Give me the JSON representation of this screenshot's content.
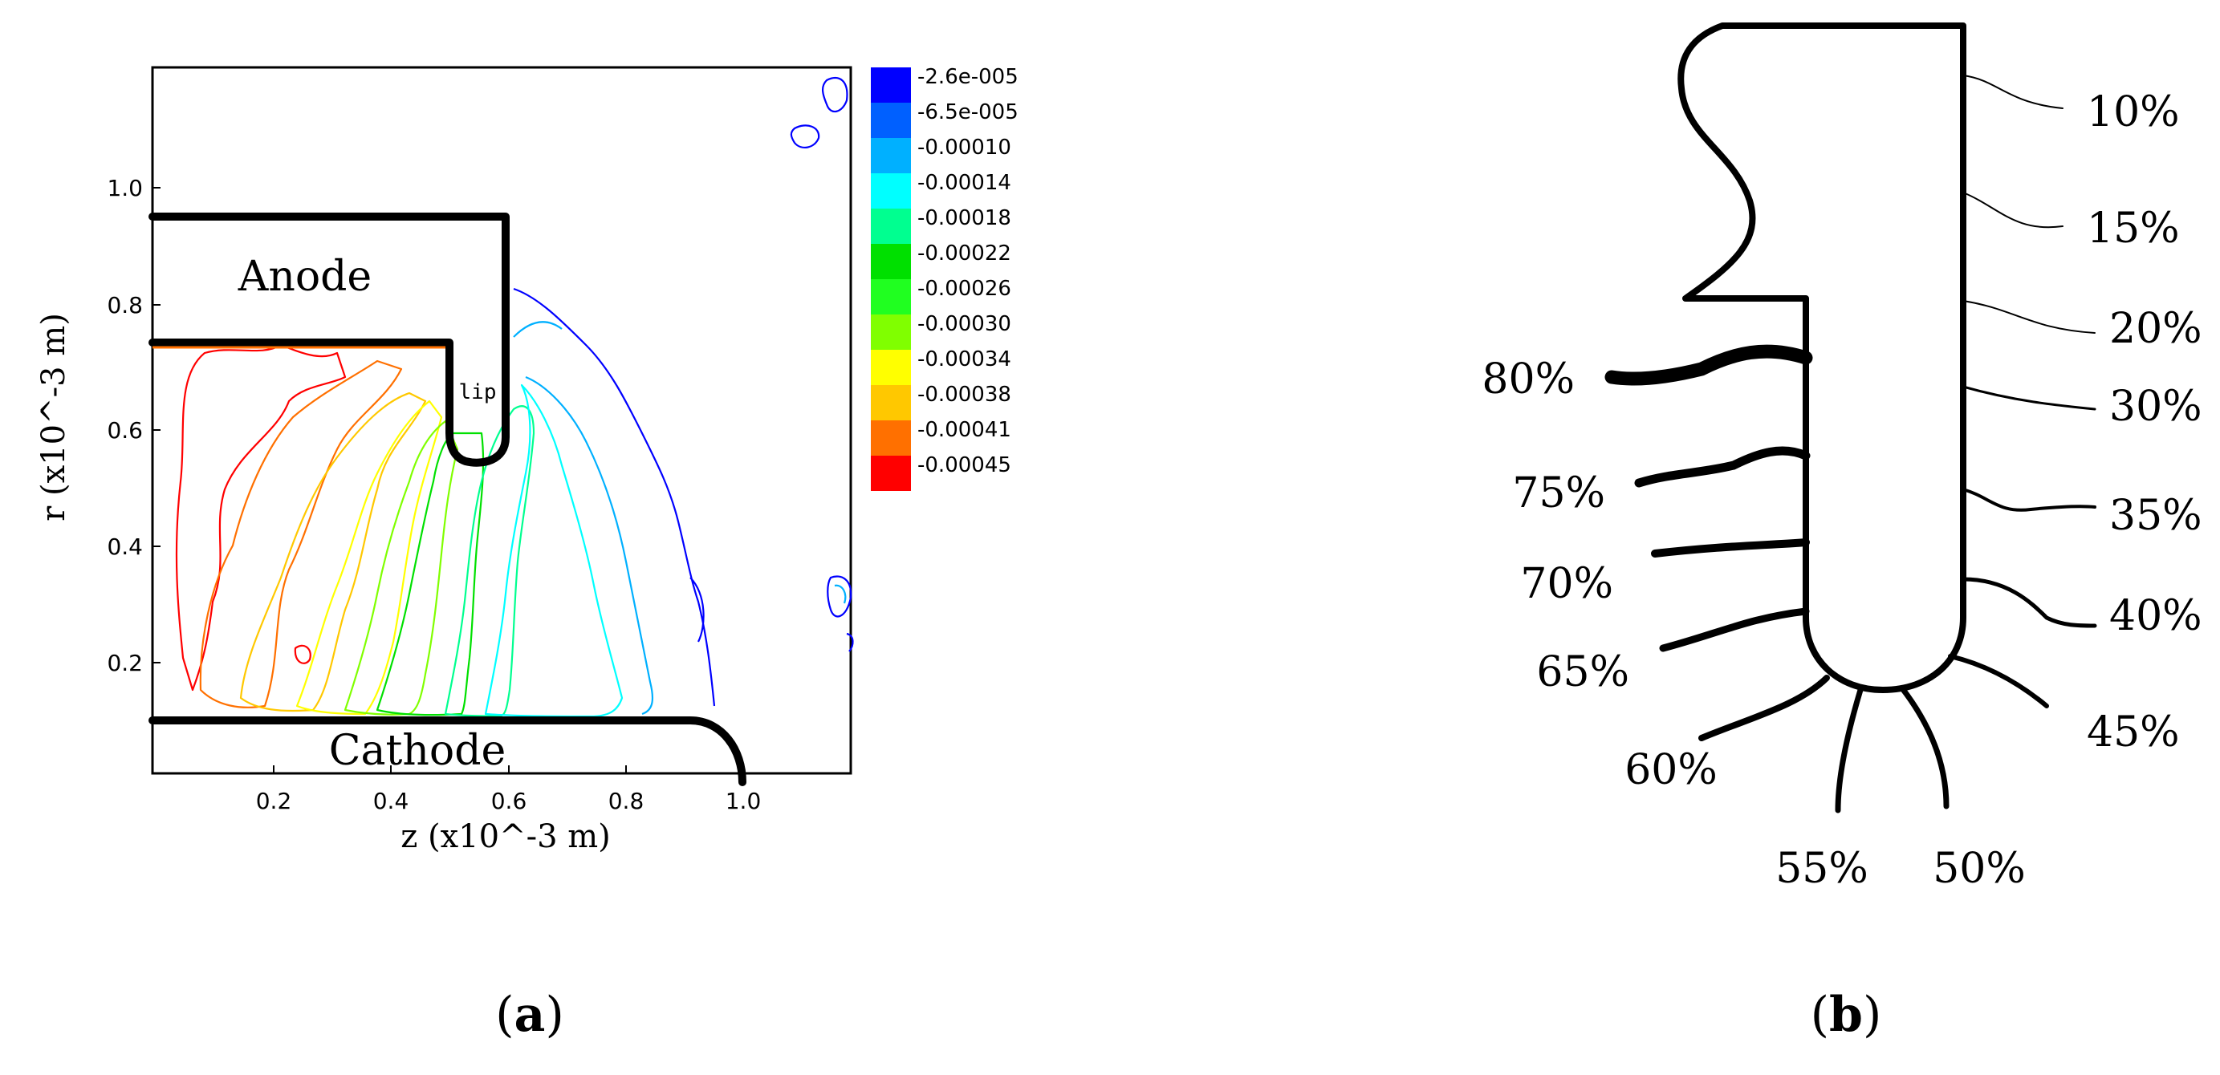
{
  "panel_a": {
    "caption": "(a)",
    "x_axis_label": "z (x10^-3 m)",
    "y_axis_label": "r (x10^-3 m)",
    "x_ticks": [
      "0.2",
      "0.4",
      "0.6",
      "0.8",
      "1.0"
    ],
    "y_ticks": [
      "0.2",
      "0.4",
      "0.6",
      "0.8",
      "1.0"
    ],
    "region_labels": {
      "anode": "Anode",
      "cathode": "Cathode",
      "lip": "lip"
    },
    "colorbar": [
      {
        "label": "-2.6e-005",
        "color": "#0000ff"
      },
      {
        "label": "-6.5e-005",
        "color": "#0060ff"
      },
      {
        "label": "-0.00010",
        "color": "#00b0ff"
      },
      {
        "label": "-0.00014",
        "color": "#00ffff"
      },
      {
        "label": "-0.00018",
        "color": "#00ff90"
      },
      {
        "label": "-0.00022",
        "color": "#00e000"
      },
      {
        "label": "-0.00026",
        "color": "#20ff20"
      },
      {
        "label": "-0.00030",
        "color": "#80ff00"
      },
      {
        "label": "-0.00034",
        "color": "#ffff00"
      },
      {
        "label": "-0.00038",
        "color": "#ffc800"
      },
      {
        "label": "-0.00041",
        "color": "#ff7000"
      },
      {
        "label": "-0.00045",
        "color": "#ff0000"
      }
    ]
  },
  "panel_b": {
    "caption": "(b)",
    "percent_labels": [
      "10%",
      "15%",
      "20%",
      "30%",
      "35%",
      "40%",
      "45%",
      "50%",
      "55%",
      "60%",
      "65%",
      "70%",
      "75%",
      "80%"
    ]
  }
}
